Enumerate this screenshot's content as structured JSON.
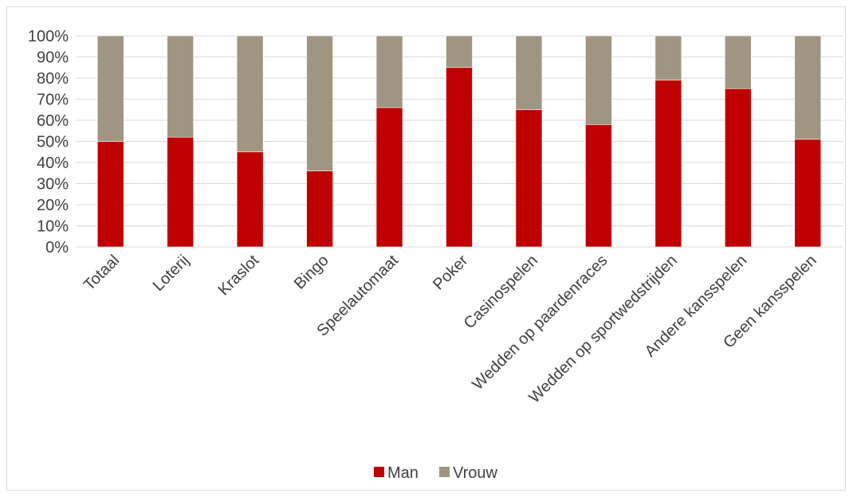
{
  "chart_data": {
    "type": "bar",
    "stacked": true,
    "normalized": true,
    "categories": [
      "Totaal",
      "Loterij",
      "Kraslot",
      "Bingo",
      "Speelautomaat",
      "Poker",
      "Casinospelen",
      "Wedden op paardenraces",
      "Wedden op sportwedstrijden",
      "Andere kansspelen",
      "Geen kansspelen"
    ],
    "series": [
      {
        "name": "Man",
        "color": "#c00000",
        "values": [
          50,
          52,
          45,
          36,
          66,
          85,
          65,
          58,
          79,
          75,
          51
        ]
      },
      {
        "name": "Vrouw",
        "color": "#a09580",
        "values": [
          50,
          48,
          55,
          64,
          34,
          15,
          35,
          42,
          21,
          25,
          49
        ]
      }
    ],
    "y_ticks": [
      "0%",
      "10%",
      "20%",
      "30%",
      "40%",
      "50%",
      "60%",
      "70%",
      "80%",
      "90%",
      "100%"
    ],
    "ylim": [
      0,
      100
    ],
    "grid": true,
    "legend_position": "bottom",
    "title": "",
    "xlabel": "",
    "ylabel": ""
  }
}
